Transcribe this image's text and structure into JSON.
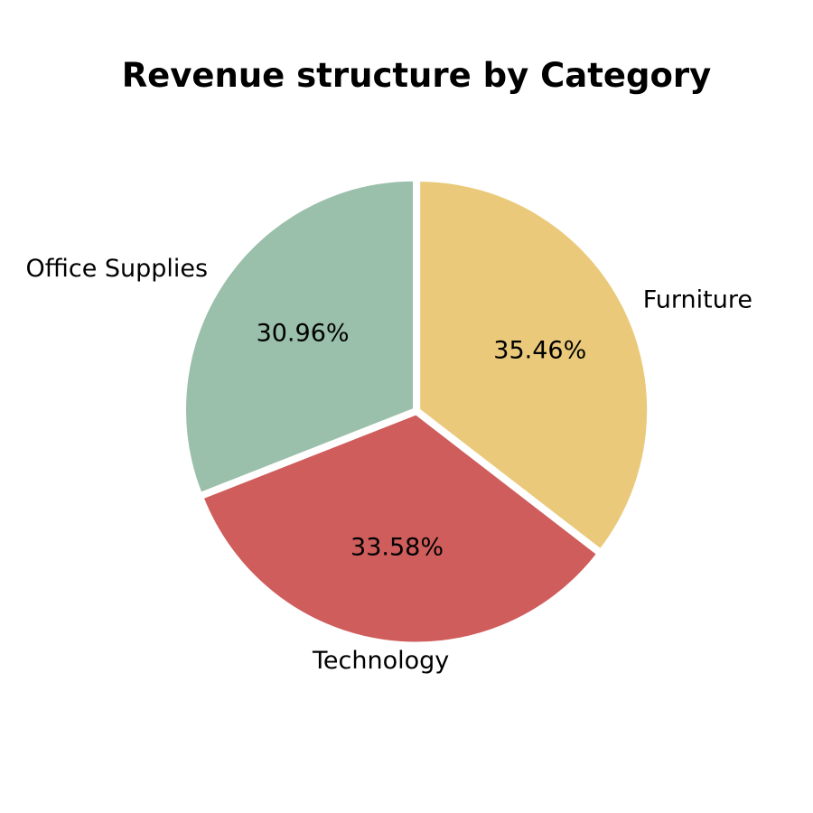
{
  "chart_data": {
    "type": "pie",
    "title": "Revenue structure by Category",
    "slices": [
      {
        "label": "Furniture",
        "value": 35.46,
        "pct_label": "35.46%",
        "color": "#eac97a"
      },
      {
        "label": "Technology",
        "value": 33.58,
        "pct_label": "33.58%",
        "color": "#cf5d5c"
      },
      {
        "label": "Office Supplies",
        "value": 30.96,
        "pct_label": "30.96%",
        "color": "#9abfaa"
      }
    ],
    "start_angle": "12 o'clock",
    "direction": "clockwise",
    "legend": "none",
    "grid": false
  }
}
